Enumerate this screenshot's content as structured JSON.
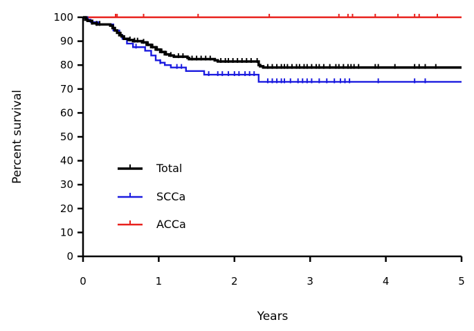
{
  "chart_data": {
    "type": "line",
    "title": "",
    "xlabel": "Years",
    "ylabel": "Percent survival",
    "xlim": [
      0,
      5
    ],
    "ylim": [
      0,
      100
    ],
    "x_ticks": [
      "0",
      "1",
      "2",
      "3",
      "4",
      "5"
    ],
    "y_ticks": [
      "0",
      "10",
      "20",
      "30",
      "40",
      "50",
      "60",
      "70",
      "80",
      "90",
      "100"
    ],
    "grid": false,
    "legend_position": "lower-left",
    "series": [
      {
        "name": "Total",
        "color": "#000000",
        "step": true,
        "points": [
          [
            0,
            100
          ],
          [
            0.03,
            99
          ],
          [
            0.06,
            98.5
          ],
          [
            0.12,
            97.5
          ],
          [
            0.18,
            97
          ],
          [
            0.36,
            96.5
          ],
          [
            0.39,
            95.5
          ],
          [
            0.42,
            94.5
          ],
          [
            0.45,
            93.5
          ],
          [
            0.48,
            92.5
          ],
          [
            0.51,
            92
          ],
          [
            0.54,
            91
          ],
          [
            0.6,
            90.5
          ],
          [
            0.66,
            90
          ],
          [
            0.78,
            89.5
          ],
          [
            0.84,
            88.5
          ],
          [
            0.9,
            87.5
          ],
          [
            0.96,
            86.5
          ],
          [
            1.02,
            85.5
          ],
          [
            1.08,
            84.5
          ],
          [
            1.14,
            84
          ],
          [
            1.2,
            83.5
          ],
          [
            1.38,
            83
          ],
          [
            1.4,
            82.5
          ],
          [
            1.74,
            82
          ],
          [
            1.78,
            81.5
          ],
          [
            2.32,
            80
          ],
          [
            2.34,
            79.5
          ],
          [
            2.38,
            79
          ],
          [
            5,
            79
          ]
        ],
        "censor_x": [
          0.05,
          0.12,
          0.18,
          0.22,
          0.4,
          0.5,
          0.62,
          0.68,
          0.72,
          0.8,
          0.86,
          0.92,
          0.98,
          1.04,
          1.1,
          1.16,
          1.26,
          1.32,
          1.44,
          1.5,
          1.56,
          1.62,
          1.68,
          1.82,
          1.88,
          1.92,
          1.98,
          2.04,
          2.1,
          2.16,
          2.22,
          2.3,
          2.44,
          2.5,
          2.56,
          2.62,
          2.66,
          2.7,
          2.76,
          2.82,
          2.86,
          2.92,
          2.96,
          3.02,
          3.08,
          3.12,
          3.18,
          3.26,
          3.34,
          3.38,
          3.44,
          3.5,
          3.54,
          3.58,
          3.64,
          3.86,
          3.9,
          4.12,
          4.38,
          4.44,
          4.52,
          4.66
        ]
      },
      {
        "name": "SCCa",
        "color": "#1a1adf",
        "step": true,
        "points": [
          [
            0,
            100
          ],
          [
            0.04,
            99
          ],
          [
            0.1,
            98
          ],
          [
            0.2,
            97
          ],
          [
            0.4,
            94.5
          ],
          [
            0.48,
            92.5
          ],
          [
            0.52,
            91
          ],
          [
            0.58,
            89
          ],
          [
            0.66,
            87.5
          ],
          [
            0.82,
            86
          ],
          [
            0.9,
            84
          ],
          [
            0.96,
            82
          ],
          [
            1.02,
            81
          ],
          [
            1.08,
            80
          ],
          [
            1.16,
            79
          ],
          [
            1.36,
            77.5
          ],
          [
            1.6,
            76
          ],
          [
            2.32,
            73
          ],
          [
            5,
            73
          ]
        ],
        "censor_x": [
          0.06,
          0.7,
          1.02,
          1.24,
          1.3,
          1.66,
          1.78,
          1.84,
          1.92,
          2.0,
          2.06,
          2.14,
          2.2,
          2.26,
          2.44,
          2.5,
          2.56,
          2.62,
          2.66,
          2.74,
          2.84,
          2.9,
          2.96,
          3.02,
          3.12,
          3.22,
          3.32,
          3.4,
          3.46,
          3.52,
          3.9,
          4.38,
          4.52
        ]
      },
      {
        "name": "ACCa",
        "color": "#e8201c",
        "step": true,
        "points": [
          [
            0,
            100
          ],
          [
            5,
            100
          ]
        ],
        "censor_x": [
          0.43,
          0.45,
          0.8,
          1.52,
          2.46,
          3.38,
          3.5,
          3.56,
          3.86,
          4.16,
          4.38,
          4.44,
          4.68
        ]
      }
    ]
  }
}
